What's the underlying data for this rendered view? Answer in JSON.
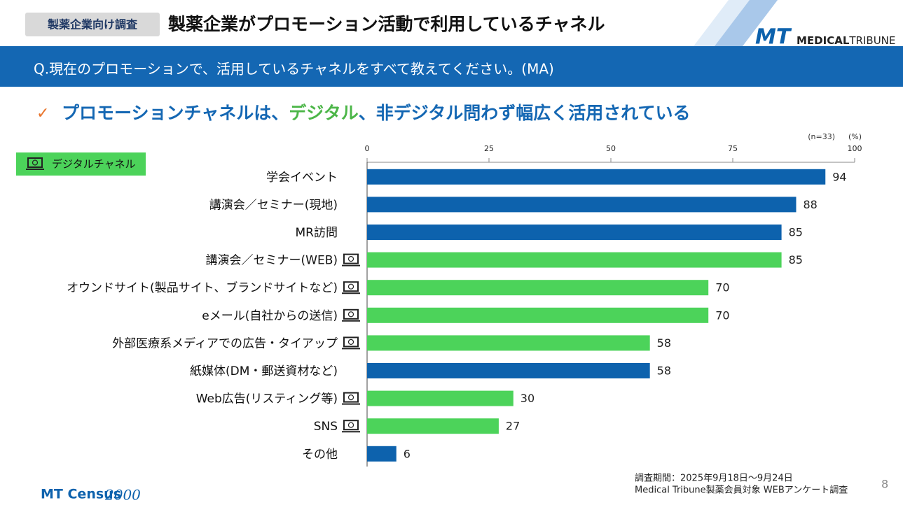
{
  "header": {
    "tag": "製薬企業向け調査",
    "title": "製薬企業がプロモーション活動で利用しているチャネル",
    "question": "Q.現在のプロモーションで、活用しているチャネルをすべて教えてください。(MA)",
    "headline": [
      "プロモーションチャネルは、",
      "デジタル",
      "、非デジタル問わず幅広く活用されている"
    ],
    "logo": {
      "mark": "MT",
      "bold": "MEDICAL",
      "name": "TRIBUNE"
    }
  },
  "chart_data": {
    "type": "bar",
    "orientation": "horizontal",
    "categories": [
      "学会イベント",
      "講演会／セミナー(現地)",
      "MR訪問",
      "講演会／セミナー(WEB)",
      "オウンドサイト(製品サイト、ブランドサイトなど)",
      "eメール(自社からの送信)",
      "外部医療系メディアでの広告・タイアップ",
      "紙媒体(DM・郵送資材など)",
      "Web広告(リスティング等)",
      "SNS",
      "その他"
    ],
    "values": [
      94,
      88,
      85,
      85,
      70,
      70,
      58,
      58,
      30,
      27,
      6
    ],
    "digital": [
      false,
      false,
      false,
      true,
      true,
      true,
      true,
      false,
      true,
      true,
      false
    ],
    "color": "#0d62ad",
    "digital_color": "#4cd35a",
    "legend": "デジタルチャネル",
    "xlim": [
      0,
      100
    ],
    "xticks": [
      0,
      25,
      50,
      75,
      100
    ],
    "grid": false,
    "note_n": "(n=33)",
    "unit": "(%)"
  },
  "footer": {
    "period": "調査期間：2025年9月18日～9月24日",
    "source": "Medical Tribune製薬会員対象 WEBアンケート調査",
    "page": "8",
    "logo": "MT Census",
    "logo_year": "2000"
  }
}
